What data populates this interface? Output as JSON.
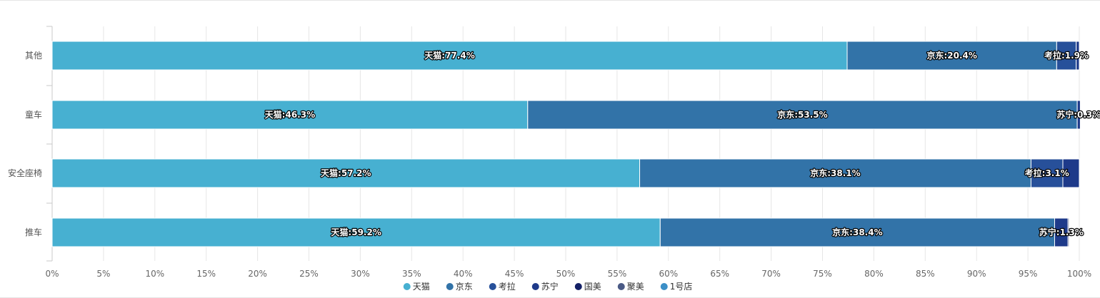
{
  "chart_data": {
    "type": "bar",
    "orientation": "horizontal",
    "stacked": "percent",
    "title": "",
    "xlabel": "",
    "ylabel": "",
    "xlim": [
      0,
      100
    ],
    "x_tick_labels": [
      "0%",
      "5%",
      "10%",
      "15%",
      "20%",
      "25%",
      "30%",
      "35%",
      "40%",
      "45%",
      "50%",
      "55%",
      "60%",
      "65%",
      "70%",
      "75%",
      "80%",
      "85%",
      "90%",
      "95%",
      "100%"
    ],
    "categories": [
      "其他",
      "童车",
      "安全座椅",
      "推车"
    ],
    "series": [
      {
        "name": "天猫",
        "color": "#47b0d1",
        "values": [
          77.4,
          46.3,
          57.2,
          59.2
        ]
      },
      {
        "name": "京东",
        "color": "#3273a8",
        "values": [
          20.4,
          53.5,
          38.1,
          38.4
        ]
      },
      {
        "name": "考拉",
        "color": "#27509a",
        "values": [
          1.9,
          0,
          3.1,
          0
        ]
      },
      {
        "name": "苏宁",
        "color": "#1e3a8a",
        "values": [
          0.3,
          0.3,
          1.6,
          1.3
        ]
      },
      {
        "name": "国美",
        "color": "#142066",
        "values": [
          0,
          0,
          0,
          0.1
        ]
      },
      {
        "name": "聚美",
        "color": "#4a5a85",
        "values": [
          0,
          0,
          0,
          0
        ]
      },
      {
        "name": "1号店",
        "color": "#3c8fc7",
        "values": [
          0,
          0,
          0,
          0
        ]
      }
    ],
    "data_labels": [
      [
        "天猫:77.4%",
        "京东:20.4%",
        "考拉:1.9%",
        "",
        "",
        "",
        ""
      ],
      [
        "天猫:46.3%",
        "京东:53.5%",
        "",
        "苏宁:0.3%",
        "",
        "",
        ""
      ],
      [
        "天猫:57.2%",
        "京东:38.1%",
        "考拉:3.1%",
        "",
        "",
        "",
        ""
      ],
      [
        "天猫:59.2%",
        "京东:38.4%",
        "",
        "苏宁:1.3%",
        "",
        "",
        ""
      ]
    ],
    "grid": true,
    "legend_position": "bottom-center"
  }
}
